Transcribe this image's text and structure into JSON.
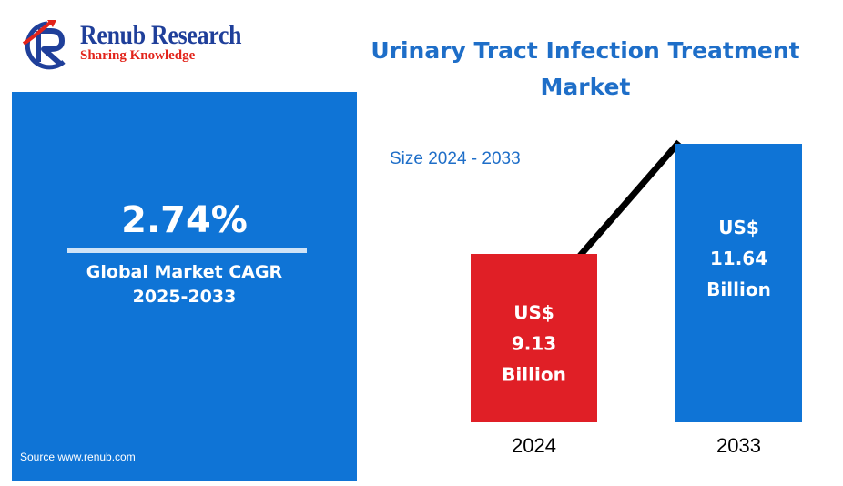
{
  "brand": {
    "name": "Renub Research",
    "tagline": "Sharing Knowledge",
    "colors": {
      "name": "#1f3f9a",
      "tagline": "#e2231a"
    }
  },
  "title": "Urinary Tract Infection Treatment Market",
  "subtitle": "Size 2024 - 2033",
  "cagr": {
    "value": "2.74%",
    "label_line1": "Global Market CAGR",
    "label_line2": "2025-2033"
  },
  "source": "Source www.renub.com",
  "colors": {
    "panel": "#0f74d6",
    "bar_2024": "#e01f26",
    "bar_2033": "#0f74d6",
    "title": "#1e6ec8"
  },
  "chart_data": {
    "type": "bar",
    "categories": [
      "2024",
      "2033"
    ],
    "values": [
      9.13,
      11.64
    ],
    "unit": "Billion",
    "data_labels": [
      [
        "US$",
        "9.13",
        "Billion"
      ],
      [
        "US$",
        "11.64",
        "Billion"
      ]
    ],
    "colors": [
      "#e01f26",
      "#0f74d6"
    ],
    "trend_line": true,
    "title": "",
    "xlabel": "",
    "ylabel": "",
    "legend": "none",
    "grid": false
  }
}
